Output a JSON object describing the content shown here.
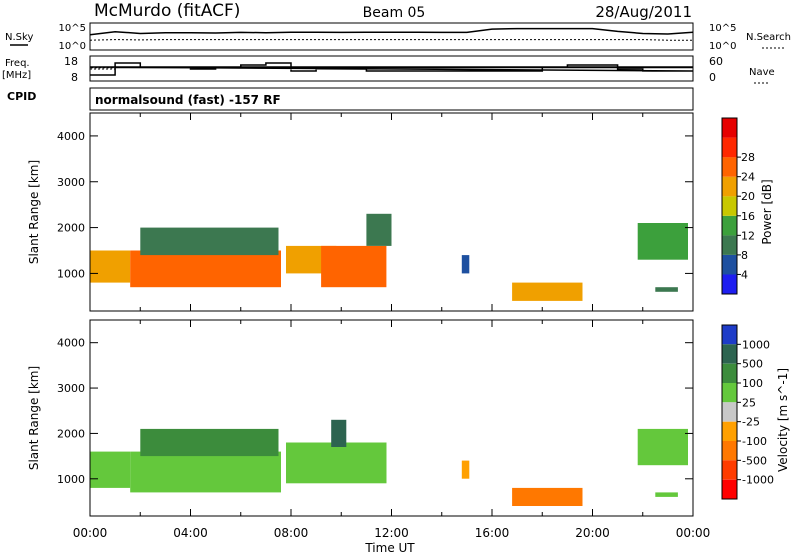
{
  "header": {
    "station": "McMurdo (fitACF)",
    "beam": "Beam 05",
    "date": "28/Aug/2011"
  },
  "left_labels": {
    "nsky": "N.Sky",
    "freq": "Freq.",
    "mhz": "[MHz]",
    "cpid": "CPID"
  },
  "right_labels": {
    "nsearch": "N.Search",
    "nave": "Nave"
  },
  "cpid_text": "normalsound (fast) -157 RF",
  "noise_axis": {
    "top": "10^5",
    "bottom": "10^0"
  },
  "freq_axis": {
    "ticks": [
      "18",
      "8"
    ]
  },
  "nave_axis": {
    "ticks": [
      "60",
      "0"
    ]
  },
  "xaxis": {
    "label": "Time UT",
    "ticks": [
      "00:00",
      "04:00",
      "08:00",
      "12:00",
      "16:00",
      "20:00",
      "00:00"
    ]
  },
  "colors": {
    "power": [
      "#1e1ef0",
      "#1e50a0",
      "#3c7850",
      "#3ca03c",
      "#c8c800",
      "#f0a000",
      "#ff6400",
      "#ff2800",
      "#e60000"
    ],
    "velocity": [
      "#1e3cc8",
      "#2d6450",
      "#3c8c3c",
      "#64c83c",
      "#c8c8c8",
      "#ffa000",
      "#ff7800",
      "#ff3c00",
      "#ff0000"
    ]
  },
  "chart_data": [
    {
      "type": "line",
      "panel": "noise",
      "ylabel": "N.Sky",
      "ylabel_right": "N.Search",
      "y_scale": "log",
      "ylim": [
        1,
        100000
      ],
      "x": [
        "00:00",
        "01:00",
        "02:00",
        "03:00",
        "04:00",
        "05:00",
        "06:00",
        "07:00",
        "08:00",
        "09:00",
        "10:00",
        "11:00",
        "12:00",
        "13:00",
        "14:00",
        "15:00",
        "16:00",
        "17:00",
        "18:00",
        "19:00",
        "20:00",
        "21:00",
        "22:00",
        "23:00",
        "00:00"
      ],
      "series": [
        {
          "name": "N.Sky",
          "values": [
            1000,
            5000,
            2000,
            3000,
            3000,
            2500,
            3500,
            3000,
            4000,
            4000,
            3500,
            4000,
            4000,
            4000,
            3500,
            3500,
            20000,
            25000,
            25000,
            25000,
            25000,
            6000,
            2000,
            1500,
            4000
          ]
        },
        {
          "name": "N.Search",
          "values": [
            60,
            80,
            70,
            80,
            80,
            80,
            80,
            80,
            80,
            80,
            80,
            80,
            80,
            80,
            80,
            80,
            80,
            80,
            80,
            80,
            80,
            80,
            80,
            60,
            60
          ]
        }
      ]
    },
    {
      "type": "line",
      "panel": "frequency",
      "ylabel": "Freq. [MHz]",
      "ylabel_right": "Nave",
      "ylim": [
        8,
        18
      ],
      "x": [
        "00:00",
        "01:00",
        "02:00",
        "03:00",
        "04:00",
        "05:00",
        "06:00",
        "07:00",
        "08:00",
        "09:00",
        "10:00",
        "11:00",
        "12:00",
        "13:00",
        "14:00",
        "15:00",
        "16:00",
        "17:00",
        "18:00",
        "19:00",
        "20:00",
        "21:00",
        "22:00",
        "23:00",
        "00:00"
      ],
      "series": [
        {
          "name": "Freq.",
          "values": [
            10,
            16,
            14,
            14,
            13,
            14,
            15,
            16,
            12,
            13,
            13,
            12,
            12,
            12,
            12,
            12,
            12,
            12,
            14,
            15,
            15,
            13,
            12,
            12,
            14
          ]
        },
        {
          "name": "Nave",
          "values": [
            30,
            34,
            34,
            34,
            34,
            34,
            34,
            34,
            34,
            34,
            34,
            34,
            34,
            34,
            34,
            34,
            34,
            34,
            34,
            34,
            34,
            34,
            34,
            34,
            34
          ]
        }
      ]
    },
    {
      "type": "heatmap",
      "panel": "power",
      "xlabel": "Time UT",
      "ylabel": "Slant Range [km]",
      "colorbar_label": "Power [dB]",
      "colorbar_ticks": [
        4,
        8,
        12,
        16,
        20,
        24,
        28
      ],
      "yticks": [
        1000,
        2000,
        3000,
        4000
      ],
      "ylim": [
        180,
        4500
      ],
      "xlim": [
        "00:00",
        "24:00"
      ],
      "regions": [
        {
          "t0": 0.0,
          "t1": 1.6,
          "r0": 800,
          "r1": 1500,
          "level": 22
        },
        {
          "t0": 1.6,
          "t1": 7.6,
          "r0": 700,
          "r1": 1500,
          "level": 27
        },
        {
          "t0": 2.0,
          "t1": 7.5,
          "r0": 1400,
          "r1": 2000,
          "level": 10
        },
        {
          "t0": 7.8,
          "t1": 9.8,
          "r0": 1000,
          "r1": 1600,
          "level": 20
        },
        {
          "t0": 9.2,
          "t1": 11.8,
          "r0": 700,
          "r1": 1600,
          "level": 26
        },
        {
          "t0": 11.0,
          "t1": 12.0,
          "r0": 1600,
          "r1": 2300,
          "level": 10
        },
        {
          "t0": 14.8,
          "t1": 15.1,
          "r0": 1000,
          "r1": 1400,
          "level": 6
        },
        {
          "t0": 16.8,
          "t1": 19.6,
          "r0": 400,
          "r1": 800,
          "level": 20
        },
        {
          "t0": 21.8,
          "t1": 23.8,
          "r0": 1300,
          "r1": 2100,
          "level": 14
        },
        {
          "t0": 22.5,
          "t1": 23.4,
          "r0": 600,
          "r1": 700,
          "level": 8
        }
      ]
    },
    {
      "type": "heatmap",
      "panel": "velocity",
      "xlabel": "Time UT",
      "ylabel": "Slant Range [km]",
      "colorbar_label": "Velocity [m s^-1]",
      "colorbar_ticks": [
        1000,
        500,
        100,
        25,
        -25,
        -100,
        -500,
        -1000
      ],
      "yticks": [
        1000,
        2000,
        3000,
        4000
      ],
      "ylim": [
        180,
        4500
      ],
      "xlim": [
        "00:00",
        "24:00"
      ],
      "regions": [
        {
          "t0": 0.0,
          "t1": 1.6,
          "r0": 800,
          "r1": 1600,
          "level": 50
        },
        {
          "t0": 1.6,
          "t1": 7.6,
          "r0": 700,
          "r1": 1600,
          "level": 80
        },
        {
          "t0": 2.0,
          "t1": 7.5,
          "r0": 1500,
          "r1": 2100,
          "level": 150
        },
        {
          "t0": 7.8,
          "t1": 11.8,
          "r0": 900,
          "r1": 1800,
          "level": 60
        },
        {
          "t0": 9.6,
          "t1": 10.2,
          "r0": 1700,
          "r1": 2300,
          "level": 600
        },
        {
          "t0": 14.8,
          "t1": 15.1,
          "r0": 1000,
          "r1": 1400,
          "level": -100
        },
        {
          "t0": 16.8,
          "t1": 19.6,
          "r0": 400,
          "r1": 800,
          "level": -150
        },
        {
          "t0": 21.8,
          "t1": 23.8,
          "r0": 1300,
          "r1": 2100,
          "level": 30
        },
        {
          "t0": 22.5,
          "t1": 23.4,
          "r0": 600,
          "r1": 700,
          "level": 80
        }
      ]
    }
  ]
}
